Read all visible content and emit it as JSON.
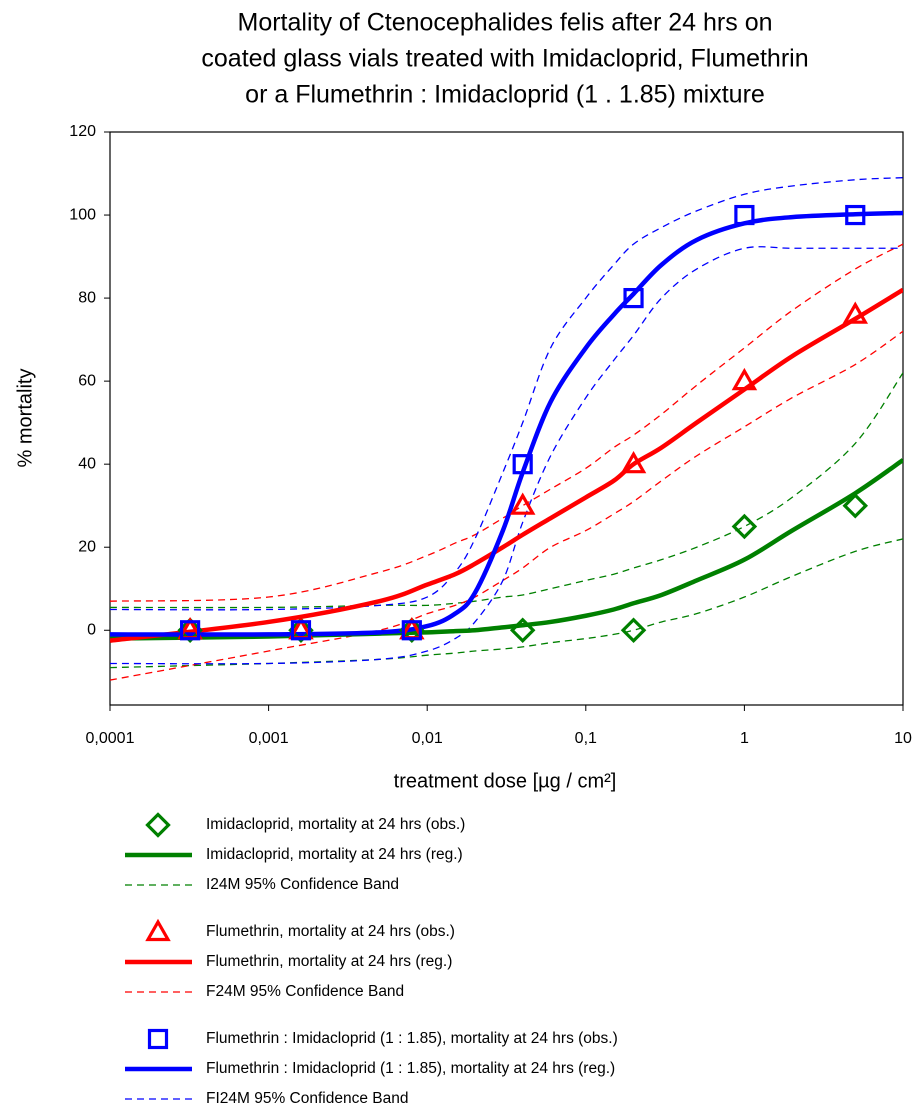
{
  "chart_data": {
    "type": "scatter",
    "title": [
      "Mortality of Ctenocephalides felis after 24 hrs on",
      "coated glass vials treated with Imidacloprid, Flumethrin",
      "or a Flumethrin : Imidacloprid (1 . 1.85) mixture"
    ],
    "x_label": "treatment dose [µg / cm²]",
    "y_label": "% mortality",
    "xscale": "log",
    "xlim": [
      0.0001,
      10
    ],
    "xticks": [
      {
        "value": 0.0001,
        "label": "0,0001"
      },
      {
        "value": 0.001,
        "label": "0,001"
      },
      {
        "value": 0.01,
        "label": "0,01"
      },
      {
        "value": 0.1,
        "label": "0,1"
      },
      1,
      10
    ],
    "ylim": [
      -18,
      120
    ],
    "yticks": [
      0,
      20,
      40,
      60,
      80,
      100,
      120
    ],
    "grid": false,
    "legend": "below",
    "series": [
      {
        "name": "Imidacloprid, mortality at 24 hrs (obs.)",
        "color": "#008000",
        "marker": "diamond",
        "x": [
          0.00032,
          0.0016,
          0.008,
          0.04,
          0.2,
          1,
          5
        ],
        "values": [
          0,
          0,
          0,
          0,
          0,
          25,
          30
        ]
      },
      {
        "name": "Imidacloprid, mortality at 24 hrs (reg.)",
        "color": "#008000",
        "line": "solid",
        "x": [
          0.0001,
          0.001,
          0.005,
          0.01,
          0.015,
          0.02,
          0.03,
          0.04,
          0.06,
          0.1,
          0.15,
          0.2,
          0.3,
          0.5,
          1,
          2,
          5,
          10
        ],
        "values": [
          -2,
          -1.5,
          -0.8,
          -0.5,
          -0.2,
          0,
          0.7,
          1.2,
          2,
          3.5,
          5,
          6.5,
          8.5,
          12,
          17,
          24,
          33,
          41
        ]
      },
      {
        "name": "I24M 95% Confidence Band",
        "color": "#008000",
        "line": "dashed",
        "x": [
          0.0001,
          0.001,
          0.005,
          0.01,
          0.015,
          0.02,
          0.03,
          0.04,
          0.06,
          0.1,
          0.15,
          0.2,
          0.3,
          0.5,
          1,
          2,
          5,
          10
        ],
        "values": [
          5.5,
          5.5,
          6,
          6,
          6.5,
          7,
          8,
          8.5,
          10,
          12,
          13.5,
          15,
          17,
          20,
          25,
          32,
          45,
          62
        ],
        "lower": [
          -9,
          -8,
          -7,
          -6,
          -5.5,
          -5,
          -4.5,
          -4,
          -3,
          -2,
          -1,
          0,
          2,
          4,
          8,
          13,
          19,
          22
        ]
      },
      {
        "name": "Flumethrin, mortality at 24 hrs (obs.)",
        "color": "#ff0000",
        "marker": "triangle",
        "x": [
          0.00032,
          0.0016,
          0.008,
          0.04,
          0.2,
          1,
          5
        ],
        "values": [
          0,
          0,
          0,
          30,
          40,
          60,
          76
        ]
      },
      {
        "name": "Flumethrin, mortality at 24 hrs (reg.)",
        "color": "#ff0000",
        "line": "solid",
        "x": [
          0.0001,
          0.001,
          0.005,
          0.01,
          0.015,
          0.02,
          0.03,
          0.04,
          0.06,
          0.1,
          0.15,
          0.2,
          0.3,
          0.5,
          1,
          2,
          5,
          10
        ],
        "values": [
          -2.5,
          2,
          7,
          11,
          13.5,
          16,
          20,
          23,
          27,
          32,
          36,
          40,
          44,
          50,
          58,
          66,
          75,
          82
        ]
      },
      {
        "name": "F24M 95% Confidence Band",
        "color": "#ff0000",
        "line": "dashed",
        "x": [
          0.0001,
          0.001,
          0.005,
          0.01,
          0.015,
          0.02,
          0.03,
          0.04,
          0.06,
          0.1,
          0.15,
          0.2,
          0.3,
          0.5,
          1,
          2,
          5,
          10
        ],
        "values": [
          7,
          8,
          14,
          18,
          21,
          23,
          27,
          30,
          34,
          39,
          44,
          47,
          52,
          59,
          68,
          77,
          87,
          93
        ],
        "lower": [
          -12,
          -5,
          0,
          4,
          6,
          8,
          12,
          15,
          20,
          24,
          28,
          31,
          36,
          42,
          49,
          56,
          64,
          72
        ]
      },
      {
        "name": "Flumethrin : Imidacloprid (1 : 1.85), mortality at 24 hrs (obs.)",
        "color": "#0000ff",
        "marker": "square",
        "x": [
          0.00032,
          0.0016,
          0.008,
          0.04,
          0.2,
          1,
          5
        ],
        "values": [
          0,
          0,
          0,
          40,
          80,
          100,
          100
        ]
      },
      {
        "name": "Flumethrin : Imidacloprid (1 : 1.85), mortality at 24 hrs (reg.)",
        "color": "#0000ff",
        "line": "solid",
        "x": [
          0.0001,
          0.001,
          0.005,
          0.01,
          0.015,
          0.02,
          0.03,
          0.04,
          0.06,
          0.1,
          0.15,
          0.2,
          0.3,
          0.5,
          1,
          2,
          5,
          10
        ],
        "values": [
          -1,
          -1,
          -0.5,
          1,
          4,
          9,
          24,
          38,
          55,
          68,
          76,
          81,
          88,
          94,
          98,
          99.5,
          100.2,
          100.5
        ]
      },
      {
        "name": "FI24M 95% Confidence Band",
        "color": "#0000ff",
        "line": "dashed",
        "x": [
          0.0001,
          0.001,
          0.005,
          0.01,
          0.015,
          0.02,
          0.03,
          0.04,
          0.06,
          0.1,
          0.15,
          0.2,
          0.3,
          0.5,
          1,
          2,
          5,
          10
        ],
        "values": [
          5,
          5,
          6,
          8,
          14,
          22,
          38,
          50,
          68,
          80,
          88,
          93,
          97,
          101,
          105,
          107,
          108.5,
          109
        ],
        "lower": [
          -8,
          -8,
          -7,
          -5,
          -2,
          2,
          12,
          26,
          42,
          56,
          65,
          71,
          80,
          87,
          92,
          92,
          92,
          92
        ]
      }
    ]
  }
}
